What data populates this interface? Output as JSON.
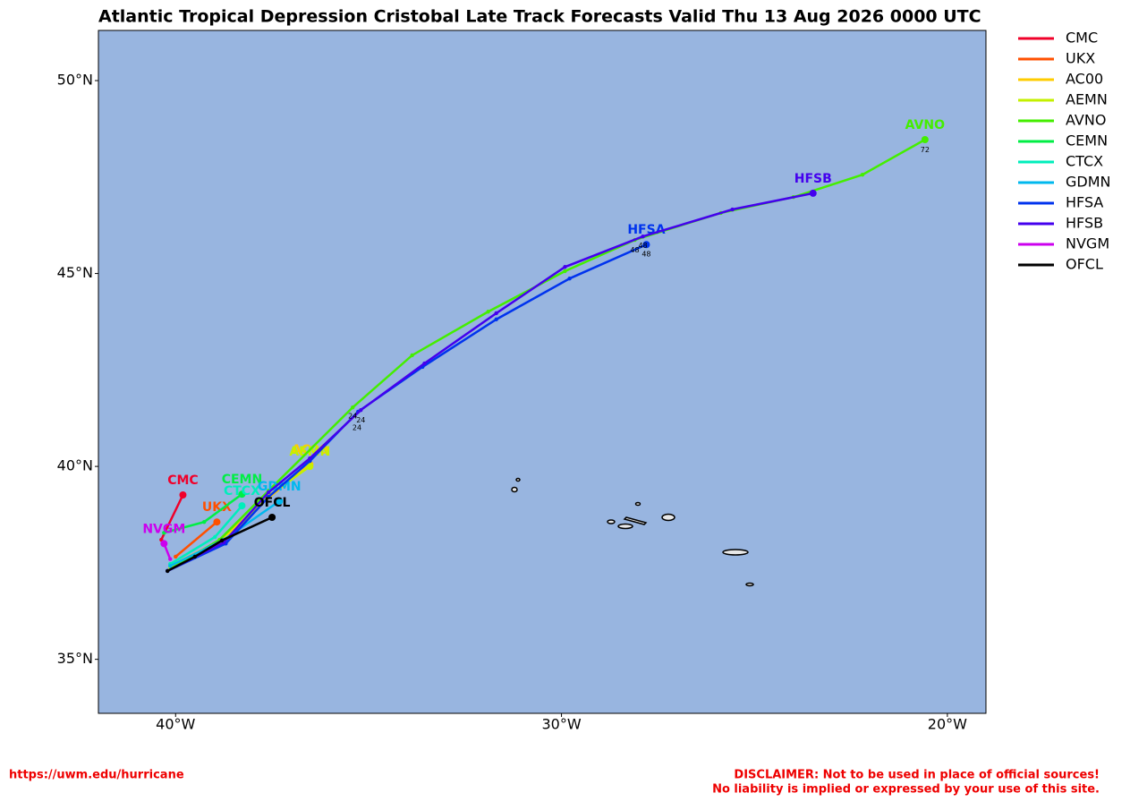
{
  "chart_data": {
    "type": "track-map",
    "title": "Atlantic Tropical Depression Cristobal Late Track Forecasts Valid Thu 13 Aug 2026 0000 UTC",
    "xlim": [
      -42,
      -19
    ],
    "ylim": [
      33.6,
      51.3
    ],
    "xticks": [
      {
        "value": -40,
        "label": "40°W"
      },
      {
        "value": -30,
        "label": "30°W"
      },
      {
        "value": -20,
        "label": "20°W"
      }
    ],
    "yticks": [
      {
        "value": 35,
        "label": "35°N"
      },
      {
        "value": 40,
        "label": "40°N"
      },
      {
        "value": 45,
        "label": "45°N"
      },
      {
        "value": 50,
        "label": "50°N"
      }
    ],
    "background": "#98b5e0",
    "legend": "right-outside",
    "series": [
      {
        "name": "CMC",
        "color": "#f0002a",
        "x": [
          -40.37,
          -39.81
        ],
        "y": [
          38.1,
          39.26
        ]
      },
      {
        "name": "UKX",
        "color": "#ff5000",
        "x": [
          -40.0,
          -38.93
        ],
        "y": [
          37.66,
          38.56
        ]
      },
      {
        "name": "AC00",
        "color": "#ffcc00",
        "x": [
          -40.14,
          -38.86,
          -37.82,
          -36.52
        ],
        "y": [
          37.42,
          38.07,
          39.0,
          40.05
        ]
      },
      {
        "name": "AEMN",
        "color": "#c4f000",
        "x": [
          -40.14,
          -38.82,
          -37.59,
          -36.52
        ],
        "y": [
          37.38,
          38.0,
          39.24,
          40.0
        ]
      },
      {
        "name": "AVNO",
        "color": "#44ee00",
        "x": [
          -40.21,
          -38.86,
          -37.59,
          -35.41,
          -33.87,
          -31.9,
          -29.91,
          -28.1,
          -25.87,
          -23.99,
          -22.2,
          -20.58
        ],
        "y": [
          37.29,
          38.1,
          39.37,
          41.53,
          42.88,
          44.01,
          45.06,
          45.87,
          46.57,
          46.98,
          47.56,
          48.47
        ]
      },
      {
        "name": "CEMN",
        "color": "#00ee44",
        "x": [
          -40.3,
          -39.26,
          -38.28
        ],
        "y": [
          38.28,
          38.56,
          39.28
        ]
      },
      {
        "name": "CTCX",
        "color": "#00eebb",
        "x": [
          -40.14,
          -38.98,
          -38.28
        ],
        "y": [
          37.47,
          38.17,
          38.98
        ]
      },
      {
        "name": "GDMN",
        "color": "#00b8ee",
        "x": [
          -40.14,
          -38.75,
          -37.31
        ],
        "y": [
          37.42,
          38.1,
          39.1
        ]
      },
      {
        "name": "HFSA",
        "color": "#0033ee",
        "x": [
          -40.21,
          -38.7,
          -37.59,
          -36.52,
          -35.27,
          -33.6,
          -31.69,
          -29.79,
          -27.8
        ],
        "y": [
          37.29,
          38.0,
          39.21,
          40.14,
          41.42,
          42.58,
          43.81,
          44.87,
          45.75
        ]
      },
      {
        "name": "HFSB",
        "color": "#4400ee",
        "x": [
          -40.21,
          -38.75,
          -37.59,
          -36.52,
          -35.2,
          -33.55,
          -31.69,
          -29.91,
          -27.89,
          -25.57,
          -23.48
        ],
        "y": [
          37.29,
          38.03,
          39.33,
          40.21,
          41.46,
          42.67,
          43.97,
          45.17,
          45.96,
          46.66,
          47.08
        ]
      },
      {
        "name": "NVGM",
        "color": "#cc00ee",
        "x": [
          -40.14,
          -40.3
        ],
        "y": [
          37.6,
          38.0
        ]
      },
      {
        "name": "OFCL",
        "color": "#000000",
        "x": [
          -40.21,
          -39.5,
          -38.8,
          -37.5
        ],
        "y": [
          37.29,
          37.66,
          38.08,
          38.68
        ]
      }
    ],
    "annotations": [
      {
        "text": "24",
        "x": -35.41,
        "y": 41.3
      },
      {
        "text": "24",
        "x": -35.2,
        "y": 41.2
      },
      {
        "text": "24",
        "x": -35.3,
        "y": 41.0
      },
      {
        "text": "48",
        "x": -28.1,
        "y": 45.6
      },
      {
        "text": "48",
        "x": -27.89,
        "y": 45.72
      },
      {
        "text": "48",
        "x": -27.8,
        "y": 45.5
      },
      {
        "text": "72",
        "x": -20.58,
        "y": 48.2
      }
    ]
  },
  "footer": {
    "url": "https://uwm.edu/hurricane",
    "disclaimer": [
      "DISCLAIMER: Not to be used in place of official sources!",
      "No liability is implied or expressed by your use of this site."
    ]
  }
}
